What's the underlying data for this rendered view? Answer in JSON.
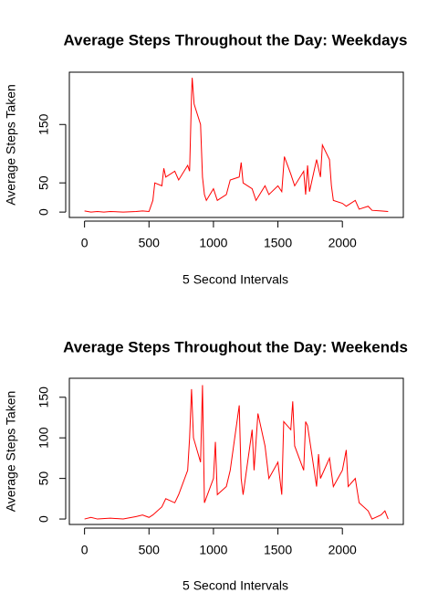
{
  "chart_data": [
    {
      "type": "line",
      "title": "Average Steps Throughout the Day: Weekdays",
      "xlabel": "5 Second Intervals",
      "ylabel": "Average Steps Taken",
      "color": "#ff0000",
      "x": [
        0,
        50,
        100,
        150,
        200,
        300,
        400,
        450,
        500,
        530,
        545,
        600,
        615,
        630,
        700,
        730,
        800,
        815,
        830,
        835,
        850,
        900,
        915,
        930,
        945,
        1000,
        1030,
        1100,
        1130,
        1200,
        1215,
        1230,
        1300,
        1330,
        1400,
        1430,
        1500,
        1530,
        1550,
        1600,
        1630,
        1700,
        1715,
        1730,
        1745,
        1800,
        1830,
        1845,
        1900,
        1915,
        1930,
        2000,
        2030,
        2100,
        2130,
        2200,
        2230,
        2300,
        2355
      ],
      "values": [
        2,
        0,
        1,
        0,
        1,
        0,
        1,
        2,
        1,
        20,
        50,
        45,
        75,
        60,
        70,
        55,
        80,
        70,
        200,
        230,
        185,
        150,
        60,
        30,
        20,
        40,
        20,
        30,
        55,
        60,
        85,
        50,
        40,
        20,
        45,
        30,
        45,
        35,
        95,
        65,
        45,
        70,
        30,
        80,
        35,
        90,
        60,
        115,
        90,
        45,
        20,
        15,
        10,
        20,
        5,
        10,
        3,
        2,
        1
      ],
      "xlim": [
        -117.75,
        2472.75
      ],
      "ylim": [
        -9.2,
        239.6
      ],
      "xticks": [
        0,
        500,
        1000,
        1500,
        2000
      ],
      "yticks": [
        0,
        50,
        150
      ]
    },
    {
      "type": "line",
      "title": "Average Steps Throughout the Day: Weekends",
      "xlabel": "5 Second Intervals",
      "ylabel": "Average Steps Taken",
      "color": "#ff0000",
      "x": [
        0,
        50,
        100,
        200,
        300,
        400,
        450,
        500,
        530,
        600,
        630,
        700,
        730,
        800,
        815,
        830,
        845,
        900,
        915,
        930,
        1000,
        1015,
        1030,
        1100,
        1130,
        1200,
        1215,
        1230,
        1300,
        1315,
        1345,
        1400,
        1430,
        1500,
        1530,
        1545,
        1600,
        1615,
        1630,
        1700,
        1715,
        1730,
        1800,
        1815,
        1830,
        1900,
        1930,
        2000,
        2030,
        2045,
        2100,
        2130,
        2200,
        2230,
        2300,
        2330,
        2355
      ],
      "values": [
        0,
        2,
        0,
        1,
        0,
        3,
        5,
        2,
        5,
        15,
        25,
        20,
        30,
        60,
        100,
        160,
        100,
        70,
        165,
        20,
        50,
        95,
        30,
        40,
        60,
        140,
        50,
        30,
        110,
        60,
        130,
        90,
        50,
        70,
        30,
        120,
        110,
        145,
        90,
        60,
        120,
        115,
        40,
        80,
        50,
        75,
        40,
        60,
        85,
        40,
        50,
        20,
        10,
        0,
        5,
        10,
        0
      ],
      "xlim": [
        -117.75,
        2472.75
      ],
      "ylim": [
        -6.7,
        173.4
      ],
      "xticks": [
        0,
        500,
        1000,
        1500,
        2000
      ],
      "yticks": [
        0,
        50,
        100,
        150
      ]
    }
  ]
}
